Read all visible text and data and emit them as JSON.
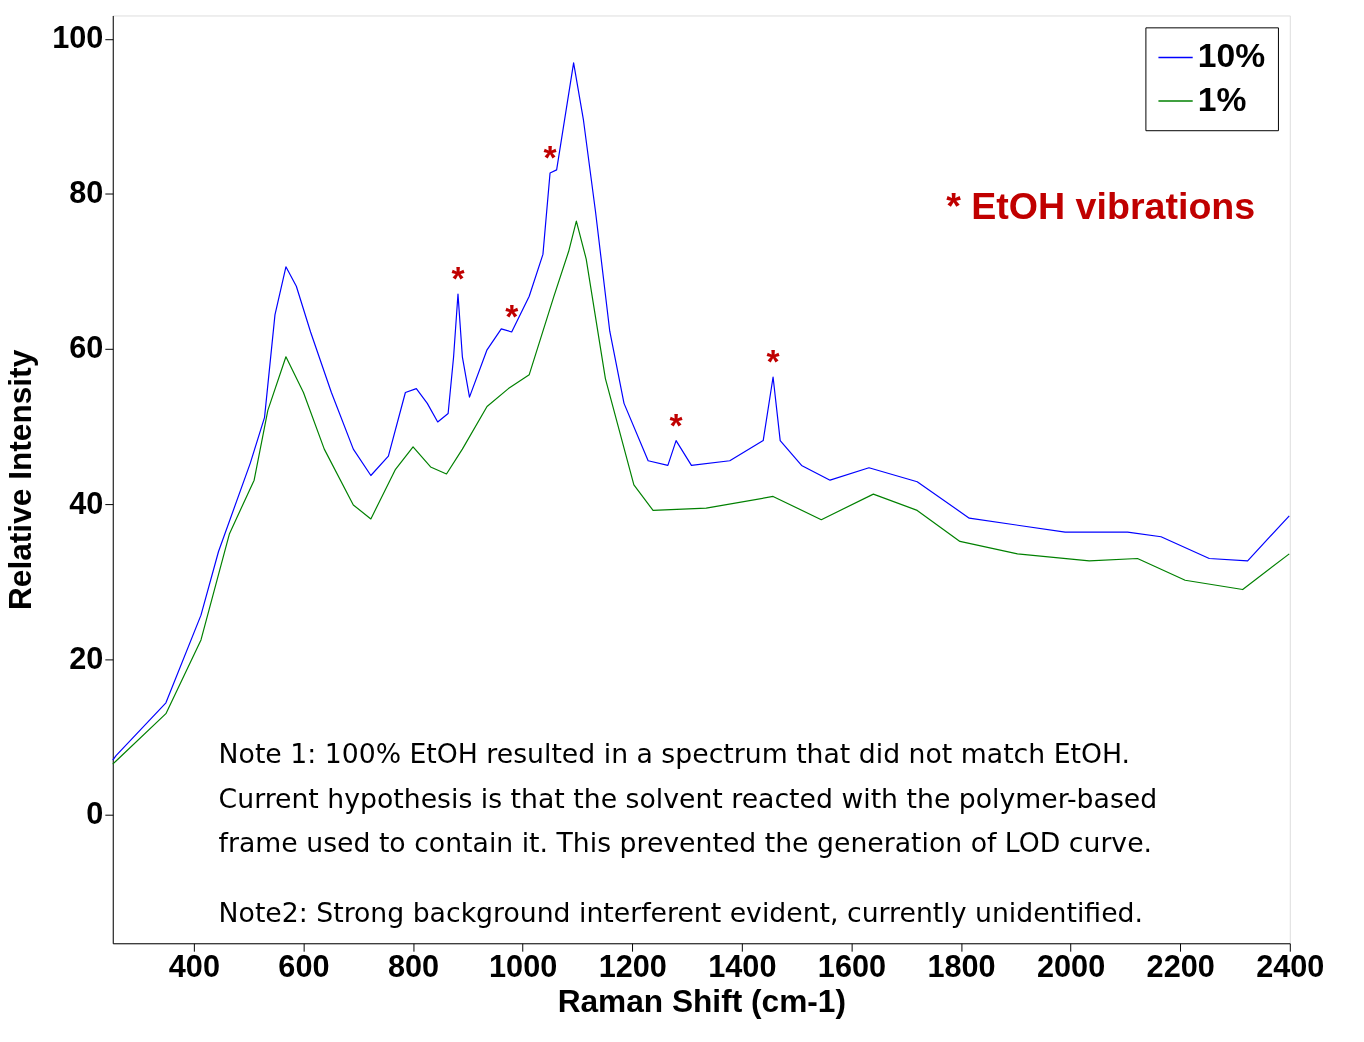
{
  "chart_data": {
    "type": "line",
    "xlabel": "Raman Shift (cm-1)",
    "ylabel": "Relative Intensity",
    "xlim": [
      252,
      2400
    ],
    "ylim": [
      -16.6,
      103
    ],
    "xticks": [
      400,
      600,
      800,
      1000,
      1200,
      1400,
      1600,
      1800,
      2000,
      2200,
      2400
    ],
    "yticks": [
      0,
      20,
      40,
      60,
      80,
      100
    ],
    "grid": false,
    "legend": "top right",
    "marker": "none",
    "line_style": "solid",
    "series": [
      {
        "name": "10%",
        "color": "#0000ff",
        "x": [
          252,
          258,
          349,
          413,
          445,
          503,
          529,
          548,
          568,
          587,
          613,
          651,
          691,
          723,
          755,
          786,
          806,
          826,
          845,
          864,
          874,
          882,
          890,
          903,
          935,
          961,
          980,
          1012,
          1037,
          1050,
          1062,
          1093,
          1111,
          1133,
          1159,
          1185,
          1229,
          1265,
          1280,
          1308,
          1378,
          1439,
          1457,
          1470,
          1509,
          1561,
          1632,
          1720,
          1815,
          1990,
          2104,
          2165,
          2253,
          2323,
          2399
        ],
        "values": [
          7.0,
          7.6,
          14.4,
          25.7,
          33.9,
          45.3,
          51.2,
          64.4,
          70.6,
          68.1,
          62.2,
          54.4,
          47.1,
          43.7,
          46.2,
          54.4,
          54.9,
          53.0,
          50.6,
          51.7,
          59.0,
          67.1,
          59.0,
          53.8,
          59.9,
          62.6,
          62.2,
          66.8,
          72.2,
          82.7,
          83.1,
          96.9,
          89.5,
          77.7,
          62.3,
          53.0,
          45.6,
          45.0,
          48.2,
          45.0,
          45.6,
          48.2,
          56.4,
          48.2,
          45.0,
          43.1,
          44.7,
          42.9,
          38.2,
          36.4,
          36.4,
          35.8,
          33.0,
          32.7,
          38.5
        ]
      },
      {
        "name": "1%",
        "color": "#008000",
        "x": [
          252,
          258,
          349,
          413,
          465,
          510,
          535,
          568,
          600,
          638,
          691,
          723,
          768,
          800,
          832,
          861,
          890,
          935,
          974,
          1012,
          1057,
          1084,
          1098,
          1116,
          1151,
          1203,
          1238,
          1335,
          1457,
          1545,
          1640,
          1720,
          1798,
          1903,
          2034,
          2122,
          2209,
          2314,
          2399
        ],
        "values": [
          6.5,
          6.9,
          13.0,
          22.5,
          36.2,
          43.1,
          52.1,
          59.0,
          54.4,
          47.1,
          39.9,
          38.1,
          44.5,
          47.4,
          44.8,
          43.9,
          47.1,
          52.6,
          54.9,
          56.7,
          66.8,
          72.6,
          76.5,
          71.6,
          56.2,
          42.5,
          39.2,
          39.5,
          41.0,
          38.0,
          41.3,
          39.2,
          35.2,
          33.6,
          32.7,
          33.0,
          30.2,
          29.0,
          33.6
        ]
      }
    ],
    "annotations": [
      "* EtOH vibrations",
      "Note 1:  100% EtOH resulted in a spectrum that did not match EtOH.\nCurrent hypothesis is that the solvent reacted with the polymer-based\nframe used to contain it.  This prevented the generation of LOD curve.",
      "Note2: Strong background interferent evident, currently unidentified.",
      {
        "text": "*",
        "x": 882,
        "y": 67.1
      },
      {
        "text": "*",
        "x": 980,
        "y": 62.2
      },
      {
        "text": "*",
        "x": 1050,
        "y": 82.7
      },
      {
        "text": "*",
        "x": 1280,
        "y": 48.2
      },
      {
        "text": "*",
        "x": 1457,
        "y": 56.4
      }
    ]
  }
}
